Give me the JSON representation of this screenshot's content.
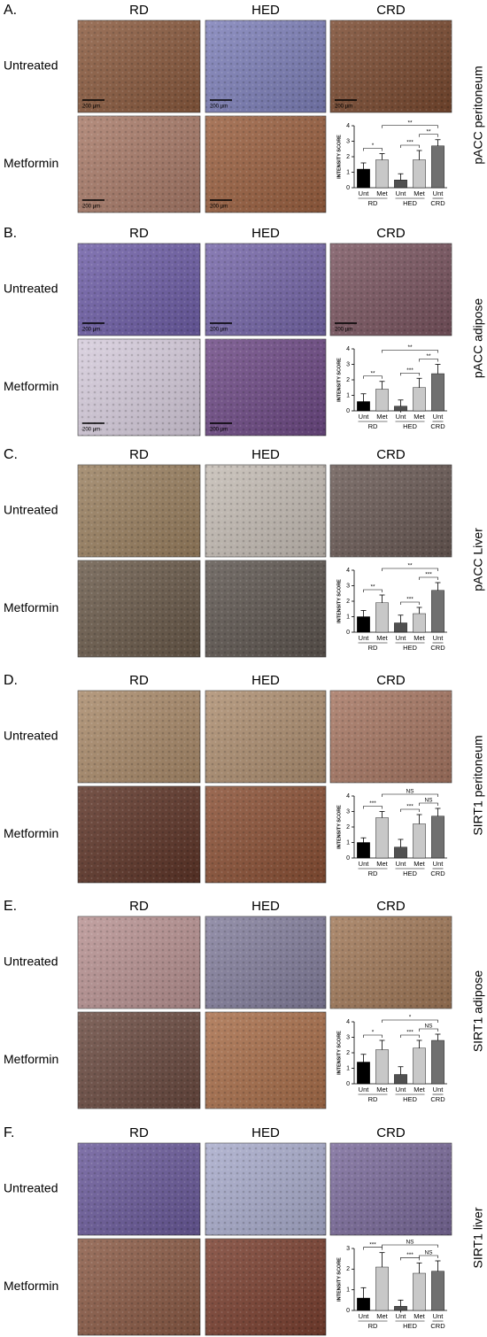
{
  "panels": [
    {
      "letter": "A.",
      "columns": [
        "RD",
        "HED",
        "CRD"
      ],
      "rows": [
        "Untreated",
        "Metformin"
      ],
      "tissue": "pACC peritoneum",
      "scale_label": "200 µm"
    },
    {
      "letter": "B.",
      "columns": [
        "RD",
        "HED",
        "CRD"
      ],
      "rows": [
        "Untreated",
        "Metformin"
      ],
      "tissue": "pACC adipose",
      "scale_label": "200 µm"
    },
    {
      "letter": "C.",
      "columns": [
        "RD",
        "HED",
        "CRD"
      ],
      "rows": [
        "Untreated",
        "Metformin"
      ],
      "tissue": "pACC Liver"
    },
    {
      "letter": "D.",
      "columns": [
        "RD",
        "HED",
        "CRD"
      ],
      "rows": [
        "Untreated",
        "Metformin"
      ],
      "tissue": "SIRT1 peritoneum"
    },
    {
      "letter": "E.",
      "columns": [
        "RD",
        "HED",
        "CRD"
      ],
      "rows": [
        "Untreated",
        "Metformin"
      ],
      "tissue": "SIRT1 adipose"
    },
    {
      "letter": "F.",
      "columns": [
        "RD",
        "HED",
        "CRD"
      ],
      "rows": [
        "Untreated",
        "Metformin"
      ],
      "tissue": "SIRT1 liver"
    }
  ],
  "chart_data": [
    {
      "type": "bar",
      "y_label": "INTENSITY SCORE",
      "categories": [
        "Unt",
        "Met",
        "Unt",
        "Met",
        "Unt"
      ],
      "groups": [
        "RD",
        "HED",
        "CRD"
      ],
      "values": [
        1.2,
        1.8,
        0.5,
        1.8,
        2.7
      ],
      "errors": [
        0.4,
        0.4,
        0.4,
        0.6,
        0.4
      ],
      "colors": [
        "#000000",
        "#c8c8c8",
        "#505050",
        "#c8c8c8",
        "#707070"
      ],
      "ylim": [
        0,
        4
      ],
      "yticks": [
        0,
        1,
        2,
        3,
        4
      ],
      "annotations": [
        {
          "label": "*",
          "between": [
            0,
            1
          ]
        },
        {
          "label": "***",
          "between": [
            2,
            3
          ]
        },
        {
          "label": "**",
          "between": [
            3,
            4
          ]
        },
        {
          "label": "**",
          "between": [
            1,
            4
          ]
        }
      ]
    },
    {
      "type": "bar",
      "y_label": "INTENSITY SCORE",
      "categories": [
        "Unt",
        "Met",
        "Unt",
        "Met",
        "Unt"
      ],
      "groups": [
        "RD",
        "HED",
        "CRD"
      ],
      "values": [
        0.6,
        1.4,
        0.3,
        1.5,
        2.4
      ],
      "errors": [
        0.5,
        0.5,
        0.4,
        0.6,
        0.6
      ],
      "colors": [
        "#000000",
        "#c8c8c8",
        "#505050",
        "#c8c8c8",
        "#707070"
      ],
      "ylim": [
        0,
        4
      ],
      "yticks": [
        0,
        1,
        2,
        3,
        4
      ],
      "annotations": [
        {
          "label": "**",
          "between": [
            0,
            1
          ]
        },
        {
          "label": "***",
          "between": [
            2,
            3
          ]
        },
        {
          "label": "**",
          "between": [
            3,
            4
          ]
        },
        {
          "label": "**",
          "between": [
            1,
            4
          ]
        }
      ]
    },
    {
      "type": "bar",
      "y_label": "INTENSITY SCORE",
      "categories": [
        "Unt",
        "Met",
        "Unt",
        "Met",
        "Unt"
      ],
      "groups": [
        "RD",
        "HED",
        "CRD"
      ],
      "values": [
        1.0,
        1.9,
        0.6,
        1.2,
        2.7
      ],
      "errors": [
        0.4,
        0.5,
        0.5,
        0.4,
        0.5
      ],
      "colors": [
        "#000000",
        "#c8c8c8",
        "#505050",
        "#c8c8c8",
        "#707070"
      ],
      "ylim": [
        0,
        4
      ],
      "yticks": [
        0,
        1,
        2,
        3,
        4
      ],
      "annotations": [
        {
          "label": "**",
          "between": [
            0,
            1
          ]
        },
        {
          "label": "***",
          "between": [
            2,
            3
          ]
        },
        {
          "label": "***",
          "between": [
            3,
            4
          ]
        },
        {
          "label": "**",
          "between": [
            1,
            4
          ]
        }
      ]
    },
    {
      "type": "bar",
      "y_label": "INTENSITY SCORE",
      "categories": [
        "Unt",
        "Met",
        "Unt",
        "Met",
        "Unt"
      ],
      "groups": [
        "RD",
        "HED",
        "CRD"
      ],
      "values": [
        1.0,
        2.6,
        0.7,
        2.2,
        2.7
      ],
      "errors": [
        0.3,
        0.4,
        0.5,
        0.6,
        0.5
      ],
      "colors": [
        "#000000",
        "#c8c8c8",
        "#505050",
        "#c8c8c8",
        "#707070"
      ],
      "ylim": [
        0,
        4
      ],
      "yticks": [
        0,
        1,
        2,
        3,
        4
      ],
      "annotations": [
        {
          "label": "***",
          "between": [
            0,
            1
          ]
        },
        {
          "label": "***",
          "between": [
            2,
            3
          ]
        },
        {
          "label": "NS",
          "between": [
            3,
            4
          ]
        },
        {
          "label": "NS",
          "between": [
            1,
            4
          ]
        }
      ]
    },
    {
      "type": "bar",
      "y_label": "INTENSITY SCORE",
      "categories": [
        "Unt",
        "Met",
        "Unt",
        "Met",
        "Unt"
      ],
      "groups": [
        "RD",
        "HED",
        "CRD"
      ],
      "values": [
        1.4,
        2.2,
        0.6,
        2.3,
        2.8
      ],
      "errors": [
        0.5,
        0.6,
        0.5,
        0.5,
        0.4
      ],
      "colors": [
        "#000000",
        "#c8c8c8",
        "#505050",
        "#c8c8c8",
        "#707070"
      ],
      "ylim": [
        0,
        4
      ],
      "yticks": [
        0,
        1,
        2,
        3,
        4
      ],
      "annotations": [
        {
          "label": "*",
          "between": [
            0,
            1
          ]
        },
        {
          "label": "***",
          "between": [
            2,
            3
          ]
        },
        {
          "label": "NS",
          "between": [
            3,
            4
          ]
        },
        {
          "label": "*",
          "between": [
            1,
            4
          ]
        }
      ]
    },
    {
      "type": "bar",
      "y_label": "INTENSITY SCORE",
      "categories": [
        "Unt",
        "Met",
        "Unt",
        "Met",
        "Unt"
      ],
      "groups": [
        "RD",
        "HED",
        "CRD"
      ],
      "values": [
        0.6,
        2.1,
        0.2,
        1.8,
        1.9
      ],
      "errors": [
        0.5,
        0.7,
        0.3,
        0.5,
        0.5
      ],
      "colors": [
        "#000000",
        "#c8c8c8",
        "#505050",
        "#c8c8c8",
        "#707070"
      ],
      "ylim": [
        0,
        3
      ],
      "yticks": [
        0,
        1,
        2,
        3
      ],
      "annotations": [
        {
          "label": "***",
          "between": [
            0,
            1
          ]
        },
        {
          "label": "***",
          "between": [
            2,
            3
          ]
        },
        {
          "label": "NS",
          "between": [
            3,
            4
          ]
        },
        {
          "label": "NS",
          "between": [
            1,
            4
          ]
        }
      ]
    }
  ]
}
